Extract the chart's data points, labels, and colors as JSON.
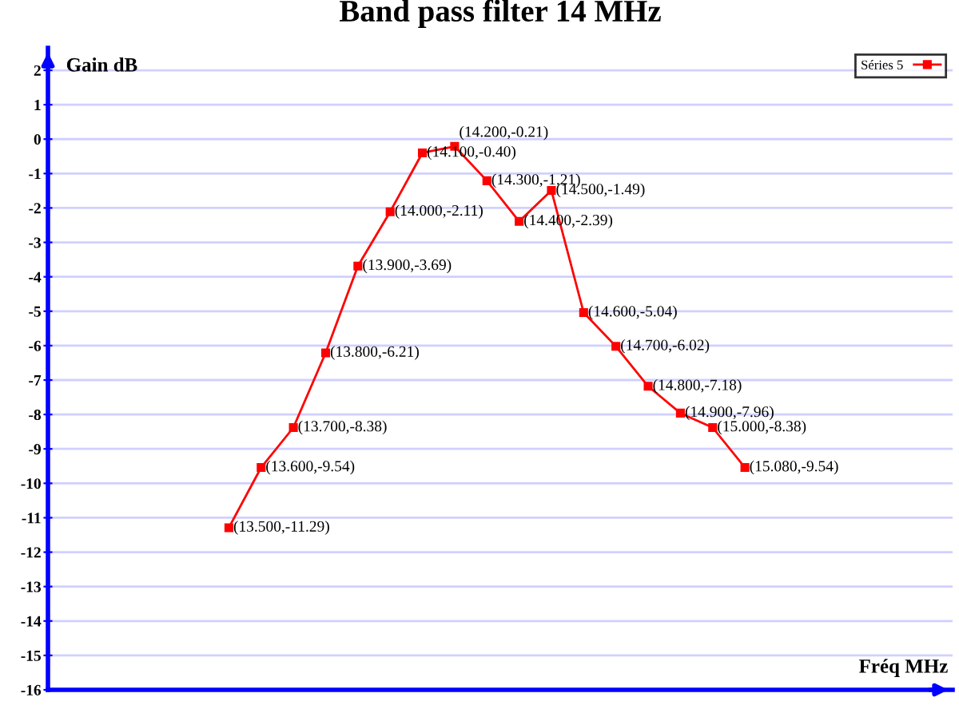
{
  "chart_data": {
    "type": "line",
    "title": "Band pass filter 14 MHz",
    "xlabel": "Fréq MHz",
    "ylabel": "Gain dB",
    "categories": [
      null,
      null,
      null,
      null,
      null,
      null,
      null,
      null,
      null,
      null,
      null,
      null,
      null,
      null,
      null,
      null,
      null
    ],
    "series": [
      {
        "name": "Séries 5",
        "color": "#ff0000",
        "values": [
          -11.29,
          -9.54,
          -8.38,
          -6.21,
          -3.69,
          -2.11,
          -0.4,
          -0.21,
          -1.21,
          -2.39,
          -1.49,
          -5.04,
          -6.02,
          -7.18,
          -7.96,
          -8.38,
          -9.54
        ],
        "value_labels": [
          "(13.500,-11.29)",
          "(13.600,-9.54)",
          "(13.700,-8.38)",
          "(13.800,-6.21)",
          "(13.900,-3.69)",
          "(14.000,-2.11)",
          "(14.100,-0.40)",
          "(14.200,-0.21)",
          "(14.300,-1.21)",
          "(14.400,-2.39)",
          "(14.500,-1.49)",
          "(14.600,-5.04)",
          "(14.700,-6.02)",
          "(14.800,-7.18)",
          "(14.900,-7.96)",
          "(15.000,-8.38)",
          "(15.080,-9.54)"
        ]
      }
    ],
    "ylim": [
      -16,
      2.65
    ],
    "yticks": [
      -16,
      -15,
      -14,
      -13,
      -12,
      -11,
      -10,
      -9,
      -8,
      -7,
      -6,
      -5,
      -4,
      -3,
      -2,
      -1,
      0,
      1,
      2
    ],
    "grid": "y",
    "legend": "top right",
    "marker": "square",
    "line_style": "solid"
  }
}
